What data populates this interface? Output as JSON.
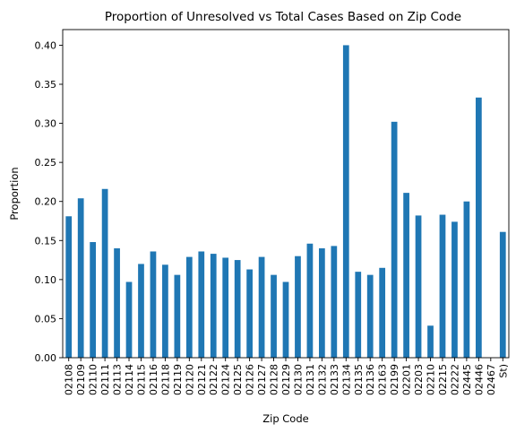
{
  "chart_data": {
    "type": "bar",
    "title": "Proportion of Unresolved vs Total Cases Based on Zip Code",
    "xlabel": "Zip Code",
    "ylabel": "Proportion",
    "ylim": [
      0,
      0.42
    ],
    "yticks": [
      "0.00",
      "0.05",
      "0.10",
      "0.15",
      "0.20",
      "0.25",
      "0.30",
      "0.35",
      "0.40"
    ],
    "grid": false,
    "bar_color": "#1f77b4",
    "categories": [
      "02108",
      "02109",
      "02110",
      "02111",
      "02113",
      "02114",
      "02115",
      "02116",
      "02118",
      "02119",
      "02120",
      "02121",
      "02122",
      "02124",
      "02125",
      "02126",
      "02127",
      "02128",
      "02129",
      "02130",
      "02131",
      "02132",
      "02133",
      "02134",
      "02135",
      "02136",
      "02163",
      "02199",
      "02201",
      "02203",
      "02210",
      "02215",
      "02222",
      "02445",
      "02446",
      "02467",
      "St)"
    ],
    "values": [
      0.181,
      0.204,
      0.148,
      0.216,
      0.14,
      0.097,
      0.12,
      0.136,
      0.119,
      0.106,
      0.129,
      0.136,
      0.133,
      0.128,
      0.125,
      0.113,
      0.129,
      0.106,
      0.097,
      0.13,
      0.146,
      0.14,
      0.143,
      0.4,
      0.11,
      0.106,
      0.115,
      0.302,
      0.211,
      0.182,
      0.041,
      0.183,
      0.174,
      0.2,
      0.333,
      0.0,
      0.161
    ]
  }
}
